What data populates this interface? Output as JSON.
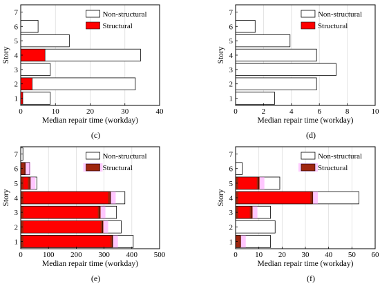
{
  "colors": {
    "nonstructural_fill": "#ffffff",
    "structural_fill": "#ff0000",
    "structural_dark_fill": "#a0260f",
    "pink_band": "#ff99ff",
    "grid": "#dddddd",
    "axis": "#000000"
  },
  "legend_labels": {
    "nonstructural": "Non-structural",
    "structural": "Structural"
  },
  "chart_data": [
    {
      "id": "c",
      "caption": "(c)",
      "type": "bar",
      "orientation": "horizontal",
      "stacked": false,
      "xlabel": "Median repair time (workday)",
      "ylabel": "Story",
      "xlim": [
        0,
        40
      ],
      "xticks": [
        "0",
        "10",
        "20",
        "30",
        "40"
      ],
      "categories": [
        "1",
        "2",
        "3",
        "4",
        "5",
        "6",
        "7"
      ],
      "legend_position": "top-right",
      "grid": true,
      "series": [
        {
          "name": "Non-structural",
          "values": [
            8.5,
            33,
            8.5,
            34.5,
            14,
            5,
            0
          ]
        },
        {
          "name": "Structural",
          "values": [
            0.6,
            3.3,
            0,
            7,
            0,
            0,
            0
          ]
        }
      ]
    },
    {
      "id": "d",
      "caption": "(d)",
      "type": "bar",
      "orientation": "horizontal",
      "stacked": false,
      "xlabel": "Median repair time (workday)",
      "ylabel": "Story",
      "xlim": [
        0,
        10
      ],
      "xticks": [
        "0",
        "2",
        "4",
        "6",
        "8",
        "10"
      ],
      "categories": [
        "1",
        "2",
        "3",
        "4",
        "5",
        "6",
        "7"
      ],
      "legend_position": "top-right",
      "grid": true,
      "series": [
        {
          "name": "Non-structural",
          "values": [
            2.8,
            5.8,
            7.2,
            5.8,
            3.9,
            1.4,
            0
          ]
        },
        {
          "name": "Structural",
          "values": [
            0,
            0,
            0,
            0,
            0,
            0,
            0
          ]
        }
      ]
    },
    {
      "id": "e",
      "caption": "(e)",
      "type": "bar",
      "orientation": "horizontal",
      "stacked": false,
      "xlabel": "Median repair time (workday)",
      "ylabel": "Story",
      "xlim": [
        0,
        500
      ],
      "xticks": [
        "0",
        "100",
        "200",
        "300",
        "400",
        "500"
      ],
      "categories": [
        "1",
        "2",
        "3",
        "4",
        "5",
        "6",
        "7"
      ],
      "legend_position": "top-right",
      "grid": true,
      "series": [
        {
          "name": "Non-structural",
          "values": [
            405,
            362,
            345,
            375,
            58,
            32,
            8
          ]
        },
        {
          "name": "Structural",
          "values": [
            330,
            295,
            285,
            322,
            33,
            15,
            0
          ]
        }
      ]
    },
    {
      "id": "f",
      "caption": "(f)",
      "type": "bar",
      "orientation": "horizontal",
      "stacked": false,
      "xlabel": "Median repair time (workday)",
      "ylabel": "Story",
      "xlim": [
        0,
        60
      ],
      "xticks": [
        "0",
        "10",
        "20",
        "30",
        "40",
        "50",
        "60"
      ],
      "categories": [
        "1",
        "2",
        "3",
        "4",
        "5",
        "6",
        "7"
      ],
      "legend_position": "top-right",
      "grid": true,
      "series": [
        {
          "name": "Non-structural",
          "values": [
            15,
            17,
            15,
            53,
            19,
            2.8,
            0
          ]
        },
        {
          "name": "Structural",
          "values": [
            2,
            0,
            7,
            33,
            10,
            0,
            0
          ]
        }
      ]
    }
  ]
}
